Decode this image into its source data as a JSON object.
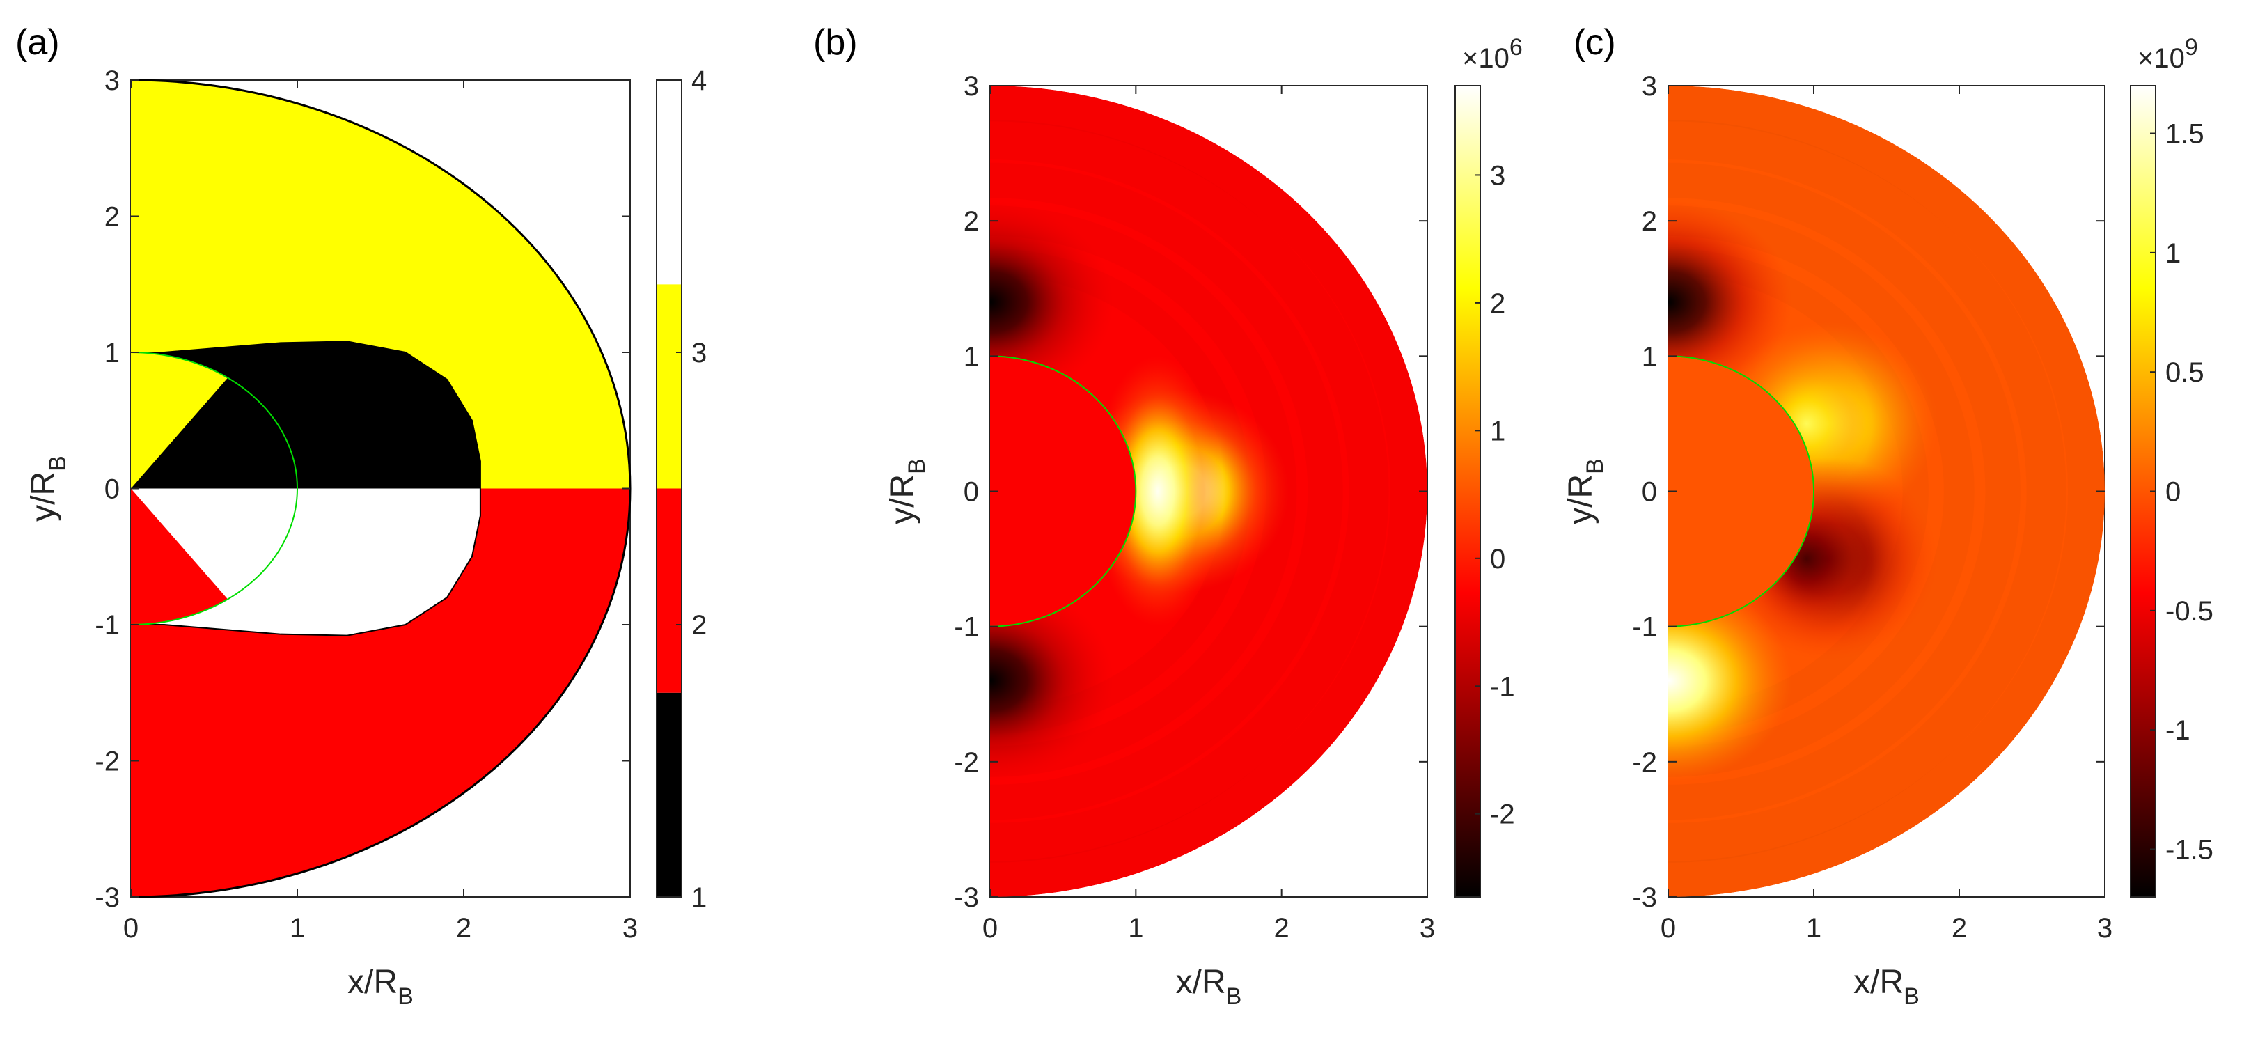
{
  "panels": [
    {
      "id": "a",
      "label": "(a)",
      "type": "categorical region map (half-disk)",
      "xlabel": "x/R",
      "ylabel": "y/R",
      "label_subscript": "B",
      "xlim": [
        0,
        3
      ],
      "ylim": [
        -3,
        3
      ],
      "xticks": [
        "0",
        "1",
        "2",
        "3"
      ],
      "yticks": [
        "-3",
        "-2",
        "-1",
        "0",
        "1",
        "2",
        "3"
      ],
      "colorbar": {
        "ticks": [
          "1",
          "2",
          "3",
          "4"
        ],
        "range": [
          1,
          4
        ],
        "levels": [
          {
            "value": 1,
            "color": "#000000"
          },
          {
            "value": 2,
            "color": "#ff0000"
          },
          {
            "value": 3,
            "color": "#ffff00"
          },
          {
            "value": 4,
            "color": "#ffffff"
          }
        ]
      },
      "regions": [
        {
          "name": "outer-upper",
          "value": 3,
          "color": "#ffff00"
        },
        {
          "name": "outer-lower",
          "value": 2,
          "color": "#ff0000"
        },
        {
          "name": "inner-upper",
          "value": 1,
          "color": "#000000"
        },
        {
          "name": "inner-lower",
          "value": 4,
          "color": "#ffffff"
        },
        {
          "name": "wedge-upper",
          "value": 3,
          "color": "#ffff00"
        },
        {
          "name": "wedge-lower",
          "value": 2,
          "color": "#ff0000"
        }
      ],
      "outer_radius": 3,
      "inner_boundary_x_max": 2.1,
      "inner_boundary_y_max": 1.08,
      "unit_circle_radius": 1
    },
    {
      "id": "b",
      "label": "(b)",
      "type": "filled contour (heatmap, half-disk)",
      "xlabel": "x/R",
      "ylabel": "y/R",
      "label_subscript": "B",
      "xlim": [
        0,
        3
      ],
      "ylim": [
        -3,
        3
      ],
      "xticks": [
        "0",
        "1",
        "2",
        "3"
      ],
      "yticks": [
        "-3",
        "-2",
        "-1",
        "0",
        "1",
        "2",
        "3"
      ],
      "colorbar": {
        "colormap": "hot",
        "multiplier_base": "×10",
        "multiplier_exp": "6",
        "ticks": [
          "-2",
          "-1",
          "0",
          "1",
          "2",
          "3"
        ],
        "tick_values": [
          -2,
          -1,
          0,
          1,
          2,
          3
        ],
        "range": [
          -2.65,
          3.7
        ]
      },
      "background_value": -0.3,
      "features": [
        {
          "kind": "minimum",
          "x": 0.0,
          "y": 1.4,
          "value": -2.65
        },
        {
          "kind": "minimum",
          "x": 0.0,
          "y": -1.4,
          "value": -2.65
        },
        {
          "kind": "maximum",
          "x": 1.3,
          "y": 0.0,
          "value": 3.7
        }
      ],
      "unit_circle_radius": 1
    },
    {
      "id": "c",
      "label": "(c)",
      "type": "filled contour (heatmap, half-disk)",
      "xlabel": "x/R",
      "ylabel": "y/R",
      "label_subscript": "B",
      "xlim": [
        0,
        3
      ],
      "ylim": [
        -3,
        3
      ],
      "xticks": [
        "0",
        "1",
        "2",
        "3"
      ],
      "yticks": [
        "-3",
        "-2",
        "-1",
        "0",
        "1",
        "2",
        "3"
      ],
      "colorbar": {
        "colormap": "hot",
        "multiplier_base": "×10",
        "multiplier_exp": "9",
        "ticks": [
          "-1.5",
          "-1",
          "-0.5",
          "0",
          "0.5",
          "1",
          "1.5"
        ],
        "tick_values": [
          -1.5,
          -1,
          -0.5,
          0,
          0.5,
          1,
          1.5
        ],
        "range": [
          -1.7,
          1.7
        ]
      },
      "background_value": 0.0,
      "features": [
        {
          "kind": "minimum",
          "x": 0.0,
          "y": 1.4,
          "value": -1.7
        },
        {
          "kind": "maximum",
          "x": 1.1,
          "y": 0.5,
          "value": 1.3
        },
        {
          "kind": "minimum",
          "x": 1.1,
          "y": -0.5,
          "value": -1.3
        },
        {
          "kind": "maximum",
          "x": 0.0,
          "y": -1.4,
          "value": 1.7
        }
      ],
      "unit_circle_radius": 1
    }
  ]
}
